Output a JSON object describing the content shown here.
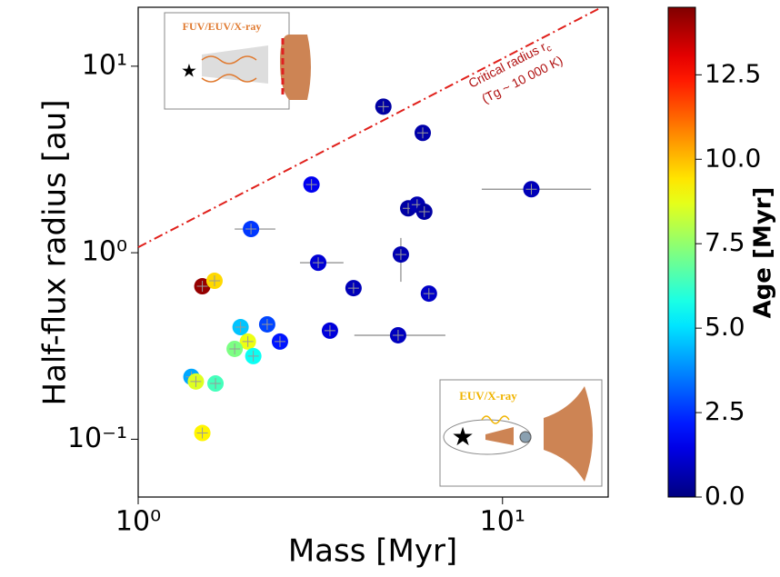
{
  "chart_data": {
    "type": "scatter",
    "xlabel": "Mass [Myr]",
    "ylabel": "Half-flux radius [au]",
    "xscale": "log",
    "yscale": "log",
    "xlim": [
      1,
      19.5
    ],
    "ylim": [
      0.049,
      20.7
    ],
    "xticks": [
      {
        "value": 1,
        "label": "10⁰"
      },
      {
        "value": 10,
        "label": "10¹"
      }
    ],
    "yticks": [
      {
        "value": 0.1,
        "label": "10⁻¹"
      },
      {
        "value": 1,
        "label": "10⁰"
      },
      {
        "value": 10,
        "label": "10¹"
      }
    ],
    "x": [
      4.71,
      6.04,
      2.99,
      12.0,
      5.51,
      5.83,
      6.1,
      2.04,
      3.12,
      5.26,
      3.9,
      6.28,
      1.5,
      1.62,
      3.36,
      5.17,
      2.26,
      2.45,
      1.91,
      2.0,
      2.07,
      1.84,
      1.4,
      1.44,
      1.63,
      1.5
    ],
    "y": [
      6.07,
      4.39,
      2.32,
      2.19,
      1.73,
      1.81,
      1.66,
      1.34,
      0.884,
      0.978,
      0.646,
      0.604,
      0.661,
      0.707,
      0.382,
      0.361,
      0.413,
      0.334,
      0.399,
      0.334,
      0.279,
      0.305,
      0.216,
      0.204,
      0.199,
      0.108
    ],
    "c": [
      0.5,
      0.6,
      1.6,
      0.8,
      0.5,
      0.7,
      0.5,
      2.6,
      1.2,
      0.7,
      0.8,
      1.0,
      14.2,
      9.6,
      1.3,
      0.9,
      2.8,
      2.1,
      4.6,
      8.8,
      5.6,
      7.2,
      4.2,
      8.6,
      6.4,
      9.2
    ],
    "x_err_low": [
      null,
      null,
      null,
      8.77,
      null,
      null,
      null,
      1.84,
      2.78,
      null,
      null,
      null,
      null,
      null,
      null,
      3.92,
      null,
      null,
      null,
      null,
      null,
      null,
      null,
      null,
      null,
      null
    ],
    "x_err_high": [
      null,
      null,
      null,
      17.5,
      null,
      null,
      null,
      2.38,
      3.66,
      null,
      null,
      null,
      null,
      null,
      null,
      6.97,
      null,
      null,
      null,
      null,
      null,
      null,
      null,
      null,
      null,
      null
    ],
    "y_err_low": [
      null,
      null,
      null,
      null,
      null,
      null,
      null,
      null,
      null,
      0.699,
      null,
      null,
      null,
      null,
      null,
      null,
      null,
      null,
      null,
      null,
      null,
      null,
      null,
      null,
      null,
      null
    ],
    "y_err_high": [
      null,
      null,
      null,
      null,
      null,
      null,
      null,
      null,
      null,
      1.2,
      null,
      null,
      null,
      null,
      null,
      null,
      null,
      null,
      null,
      null,
      null,
      null,
      null,
      null,
      null,
      null
    ],
    "colormap": "jet",
    "clim": [
      0,
      14.5
    ],
    "colorbar_label": "Age [Myr]",
    "colorbar_ticks": [
      {
        "value": 0,
        "label": "0.0"
      },
      {
        "value": 2.5,
        "label": "2.5"
      },
      {
        "value": 5,
        "label": "5.0"
      },
      {
        "value": 7.5,
        "label": "7.5"
      },
      {
        "value": 10,
        "label": "10.0"
      },
      {
        "value": 12.5,
        "label": "12.5"
      }
    ],
    "critical_line": {
      "x": [
        1,
        18.7
      ],
      "y": [
        1.07,
        20.7
      ],
      "color": "#e0201b"
    },
    "annotation": {
      "line1": "Critical radius r",
      "subscript": "c",
      "line2": "(Tg ~ 10 000 K)",
      "color": "#b01010"
    },
    "inset_top_label": "FUV/EUV/X-ray",
    "inset_bottom_label": "EUV/X-ray"
  }
}
